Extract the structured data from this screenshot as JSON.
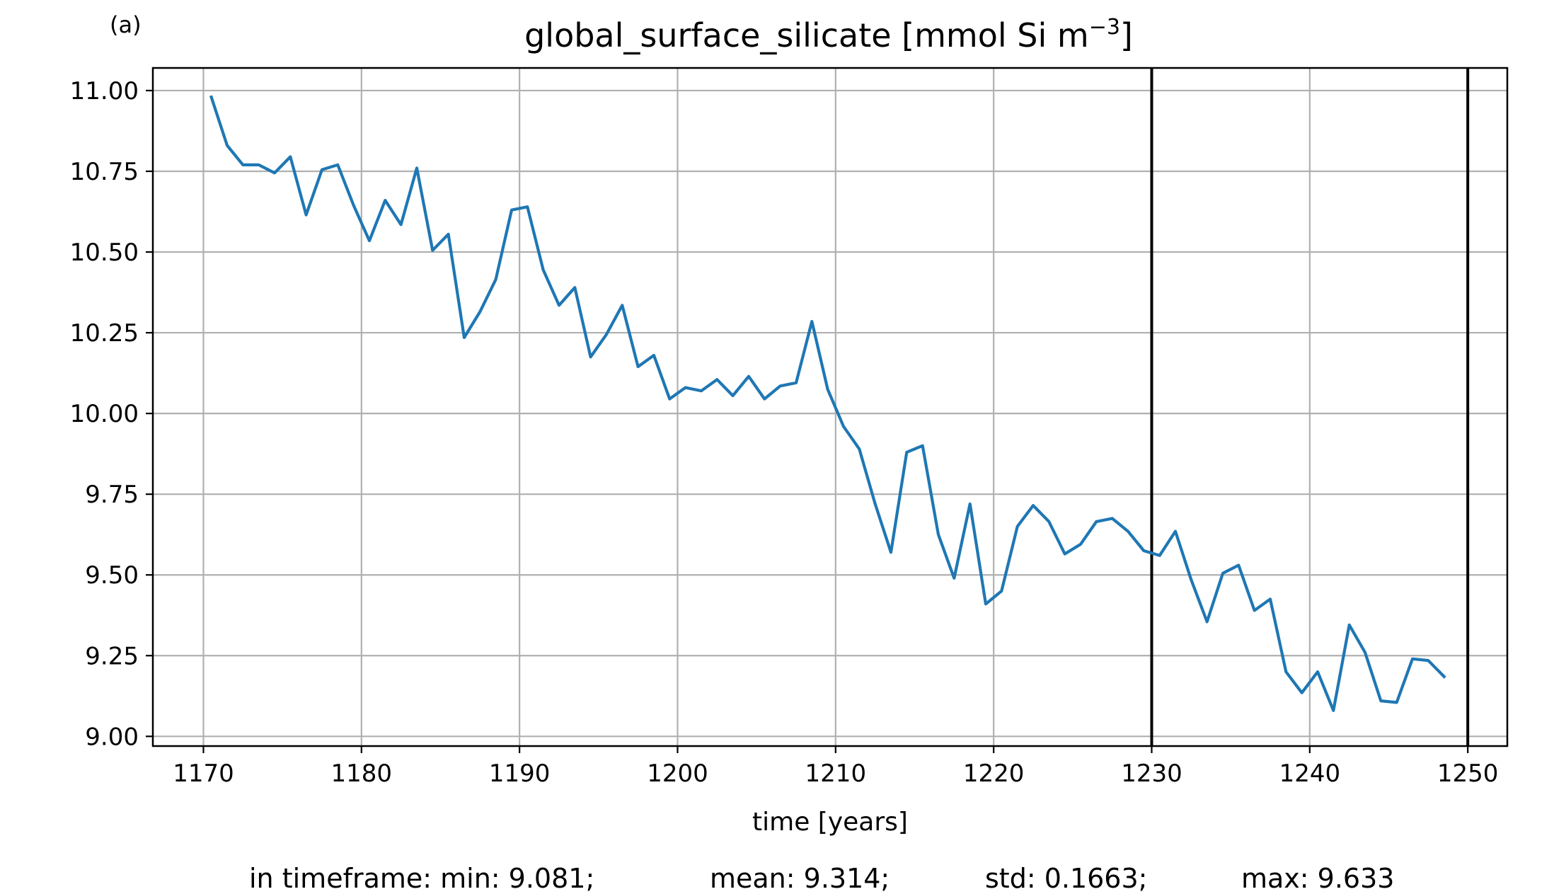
{
  "panel_label": "(a)",
  "title": {
    "base": "global_surface_silicate [mmol Si m",
    "sup": "−3",
    "close": "]"
  },
  "stats": {
    "min": "in timeframe: min: 9.081;",
    "mean": "mean: 9.314;",
    "std": "std: 0.1663;",
    "max": "max: 9.633"
  },
  "colors": {
    "series": "#1f77b4",
    "grid": "#b0b0b0",
    "marker_lines": "#000000"
  },
  "chart_data": {
    "type": "line",
    "title": "global_surface_silicate [mmol Si m−3]",
    "xlabel": "time [years]",
    "ylabel": "",
    "xlim": [
      1166.8,
      1252.5
    ],
    "ylim": [
      8.97,
      11.07
    ],
    "xticks": [
      1170,
      1180,
      1190,
      1200,
      1210,
      1220,
      1230,
      1240,
      1250
    ],
    "yticks": [
      9.0,
      9.25,
      9.5,
      9.75,
      10.0,
      10.25,
      10.5,
      10.75,
      11.0
    ],
    "ytick_labels": [
      "9.00",
      "9.25",
      "9.50",
      "9.75",
      "10.00",
      "10.25",
      "10.50",
      "10.75",
      "11.00"
    ],
    "grid": true,
    "vertical_lines": [
      1230,
      1250
    ],
    "series": [
      {
        "x": [
          1170.5,
          1171.5,
          1172.5,
          1173.5,
          1174.5,
          1175.5,
          1176.5,
          1177.5,
          1178.5,
          1179.5,
          1180.5,
          1181.5,
          1182.5,
          1183.5,
          1184.5,
          1185.5,
          1186.5,
          1187.5,
          1188.5,
          1189.5,
          1190.5,
          1191.5,
          1192.5,
          1193.5,
          1194.5,
          1195.5,
          1196.5,
          1197.5,
          1198.5,
          1199.5,
          1200.5,
          1201.5,
          1202.5,
          1203.5,
          1204.5,
          1205.5,
          1206.5,
          1207.5,
          1208.5,
          1209.5,
          1210.5,
          1211.5,
          1212.5,
          1213.5,
          1214.5,
          1215.5,
          1216.5,
          1217.5,
          1218.5,
          1219.5,
          1220.5,
          1221.5,
          1222.5,
          1223.5,
          1224.5,
          1225.5,
          1226.5,
          1227.5,
          1228.5,
          1229.5,
          1230.5,
          1231.5,
          1232.5,
          1233.5,
          1234.5,
          1235.5,
          1236.5,
          1237.5,
          1238.5,
          1239.5,
          1240.5,
          1241.5,
          1242.5,
          1243.5,
          1244.5,
          1245.5,
          1246.5,
          1247.5,
          1248.5
        ],
        "values": [
          10.98,
          10.83,
          10.77,
          10.77,
          10.745,
          10.795,
          10.615,
          10.755,
          10.77,
          10.645,
          10.535,
          10.66,
          10.585,
          10.76,
          10.505,
          10.555,
          10.235,
          10.315,
          10.415,
          10.63,
          10.64,
          10.445,
          10.335,
          10.39,
          10.175,
          10.245,
          10.335,
          10.145,
          10.18,
          10.045,
          10.08,
          10.07,
          10.105,
          10.055,
          10.115,
          10.045,
          10.085,
          10.095,
          10.285,
          10.075,
          9.96,
          9.89,
          9.72,
          9.57,
          9.88,
          9.9,
          9.625,
          9.49,
          9.72,
          9.41,
          9.45,
          9.65,
          9.715,
          9.665,
          9.565,
          9.595,
          9.665,
          9.675,
          9.635,
          9.575,
          9.56,
          9.635,
          9.485,
          9.355,
          9.505,
          9.53,
          9.39,
          9.425,
          9.2,
          9.135,
          9.2,
          9.08,
          9.345,
          9.26,
          9.11,
          9.105,
          9.24,
          9.235,
          9.185
        ]
      }
    ]
  }
}
